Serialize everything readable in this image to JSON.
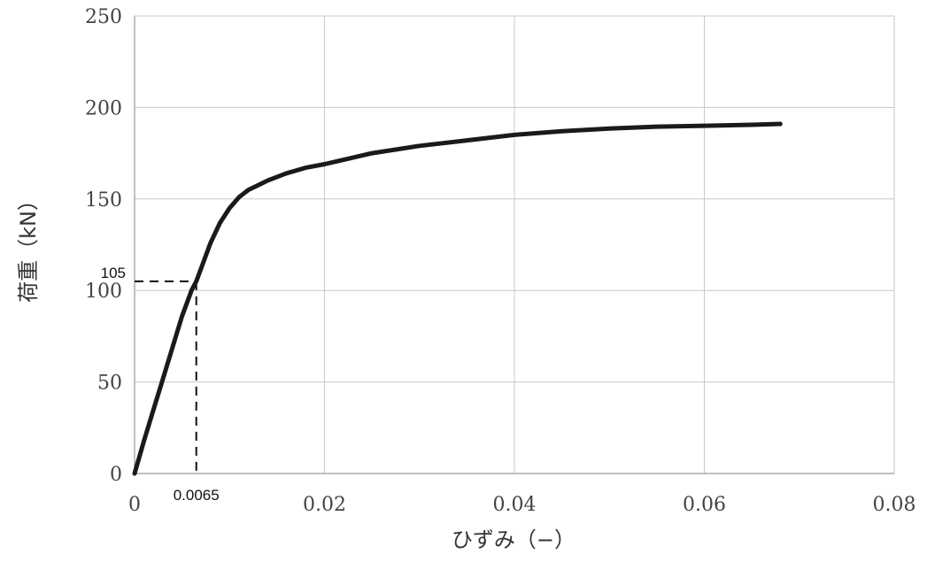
{
  "chart_data": {
    "type": "line",
    "title": "",
    "xlabel": "ひずみ（−）",
    "ylabel": "荷重（kN）",
    "xlim": [
      0,
      0.08
    ],
    "ylim": [
      0,
      250
    ],
    "x_ticks": [
      0,
      0.02,
      0.04,
      0.06,
      0.08
    ],
    "x_tick_labels": [
      "0",
      "0.02",
      "0.04",
      "0.06",
      "0.08"
    ],
    "y_ticks": [
      0,
      50,
      100,
      150,
      200,
      250
    ],
    "y_tick_labels": [
      "0",
      "50",
      "100",
      "150",
      "200",
      "250"
    ],
    "grid": true,
    "series": [
      {
        "color": "#1a1a1a",
        "x": [
          0,
          0.001,
          0.002,
          0.003,
          0.004,
          0.005,
          0.006,
          0.0065,
          0.007,
          0.008,
          0.009,
          0.01,
          0.011,
          0.012,
          0.014,
          0.016,
          0.018,
          0.02,
          0.025,
          0.03,
          0.035,
          0.04,
          0.045,
          0.05,
          0.055,
          0.06,
          0.065,
          0.068
        ],
        "y": [
          0,
          18,
          35,
          52,
          69,
          86,
          100,
          105,
          112,
          126,
          137,
          145,
          151,
          155,
          160,
          164,
          167,
          169,
          175,
          179,
          182,
          185,
          187,
          188.5,
          189.5,
          190,
          190.5,
          191
        ]
      }
    ],
    "annotations": [
      {
        "label": "105",
        "x": 0.0065,
        "y": 105
      },
      {
        "label": "0.0065",
        "x": 0.0065,
        "y": 0
      }
    ]
  }
}
